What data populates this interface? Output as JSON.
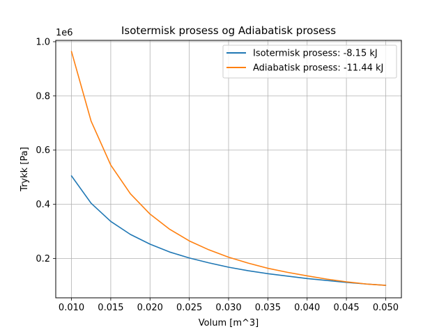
{
  "chart_data": {
    "type": "line",
    "title": "Isotermisk prosess og Adiabatisk prosess",
    "xlabel": "Volum [m^3]",
    "ylabel": "Trykk [Pa]",
    "y_offset_label": "1e6",
    "xlim": [
      0.008,
      0.052
    ],
    "ylim": [
      0.055,
      1.005
    ],
    "x_ticks": [
      0.01,
      0.015,
      0.02,
      0.025,
      0.03,
      0.035,
      0.04,
      0.045,
      0.05
    ],
    "x_tick_labels": [
      "0.010",
      "0.015",
      "0.020",
      "0.025",
      "0.030",
      "0.035",
      "0.040",
      "0.045",
      "0.050"
    ],
    "y_ticks": [
      0.2,
      0.4,
      0.6,
      0.8,
      1.0
    ],
    "y_tick_labels": [
      "0.2",
      "0.4",
      "0.6",
      "0.8",
      "1.0"
    ],
    "grid": true,
    "legend_position": "top-right",
    "series": [
      {
        "name": "Isotermisk prosess: -8.15 kJ",
        "color": "#1f77b4",
        "x": [
          0.01,
          0.0125,
          0.015,
          0.0175,
          0.02,
          0.0225,
          0.025,
          0.0275,
          0.03,
          0.0325,
          0.035,
          0.0375,
          0.04,
          0.0425,
          0.045,
          0.0475,
          0.05
        ],
        "y": [
          0.505,
          0.404,
          0.337,
          0.289,
          0.253,
          0.224,
          0.202,
          0.184,
          0.168,
          0.155,
          0.144,
          0.135,
          0.126,
          0.119,
          0.112,
          0.106,
          0.101
        ]
      },
      {
        "name": "Adiabatisk prosess: -11.44 kJ",
        "color": "#ff7f0e",
        "x": [
          0.01,
          0.0125,
          0.015,
          0.0175,
          0.02,
          0.0225,
          0.025,
          0.0275,
          0.03,
          0.0325,
          0.035,
          0.0375,
          0.04,
          0.0425,
          0.045,
          0.0475,
          0.05
        ],
        "y": [
          0.964,
          0.707,
          0.545,
          0.439,
          0.364,
          0.308,
          0.265,
          0.232,
          0.205,
          0.183,
          0.164,
          0.149,
          0.136,
          0.124,
          0.114,
          0.106,
          0.101
        ]
      }
    ]
  }
}
